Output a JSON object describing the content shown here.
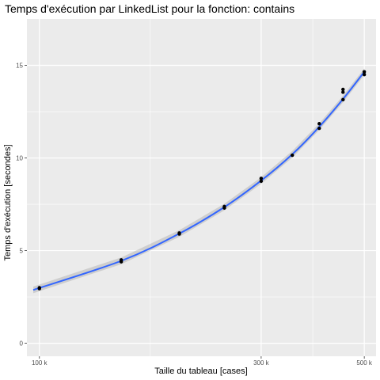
{
  "chart_data": {
    "type": "scatter",
    "title": "Temps d'exécution par LinkedList pour la fonction: contains",
    "xlabel": "Taille du tableau [cases]",
    "ylabel": "Temps d'exécution [secondes]",
    "xscale": "log",
    "xlim": [
      94000,
      530000
    ],
    "ylim": [
      -0.7,
      17.5
    ],
    "x_ticks": [
      {
        "value": 100000,
        "label": "100 k"
      },
      {
        "value": 300000,
        "label": "300 k"
      },
      {
        "value": 500000,
        "label": "500 k"
      }
    ],
    "y_ticks": [
      {
        "value": 0,
        "label": "0"
      },
      {
        "value": 5,
        "label": "5"
      },
      {
        "value": 10,
        "label": "10"
      },
      {
        "value": 15,
        "label": "15"
      }
    ],
    "grid": true,
    "legend": "none",
    "colors": {
      "panel": "#ebebeb",
      "grid": "#ffffff",
      "points": "#000000",
      "fit_line": "#3366ff",
      "ribbon": "#999999"
    },
    "series": [
      {
        "values": [
          {
            "x": 100000,
            "y": 2.95
          },
          {
            "x": 100000,
            "y": 3.0
          },
          {
            "x": 150000,
            "y": 4.4
          },
          {
            "x": 150000,
            "y": 4.5
          },
          {
            "x": 200000,
            "y": 5.9
          },
          {
            "x": 200000,
            "y": 5.95
          },
          {
            "x": 250000,
            "y": 7.3
          },
          {
            "x": 250000,
            "y": 7.38
          },
          {
            "x": 300000,
            "y": 8.75
          },
          {
            "x": 300000,
            "y": 8.9
          },
          {
            "x": 350000,
            "y": 10.15
          },
          {
            "x": 400000,
            "y": 11.6
          },
          {
            "x": 400000,
            "y": 11.85
          },
          {
            "x": 450000,
            "y": 13.15
          },
          {
            "x": 450000,
            "y": 13.55
          },
          {
            "x": 450000,
            "y": 13.7
          },
          {
            "x": 500000,
            "y": 14.5
          },
          {
            "x": 500000,
            "y": 14.65
          }
        ]
      }
    ],
    "fit_line": [
      {
        "x": 97000,
        "y": 2.88
      },
      {
        "x": 150000,
        "y": 4.45
      },
      {
        "x": 200000,
        "y": 5.92
      },
      {
        "x": 250000,
        "y": 7.35
      },
      {
        "x": 300000,
        "y": 8.78
      },
      {
        "x": 350000,
        "y": 10.2
      },
      {
        "x": 400000,
        "y": 11.68
      },
      {
        "x": 450000,
        "y": 13.18
      },
      {
        "x": 500000,
        "y": 14.65
      }
    ]
  }
}
